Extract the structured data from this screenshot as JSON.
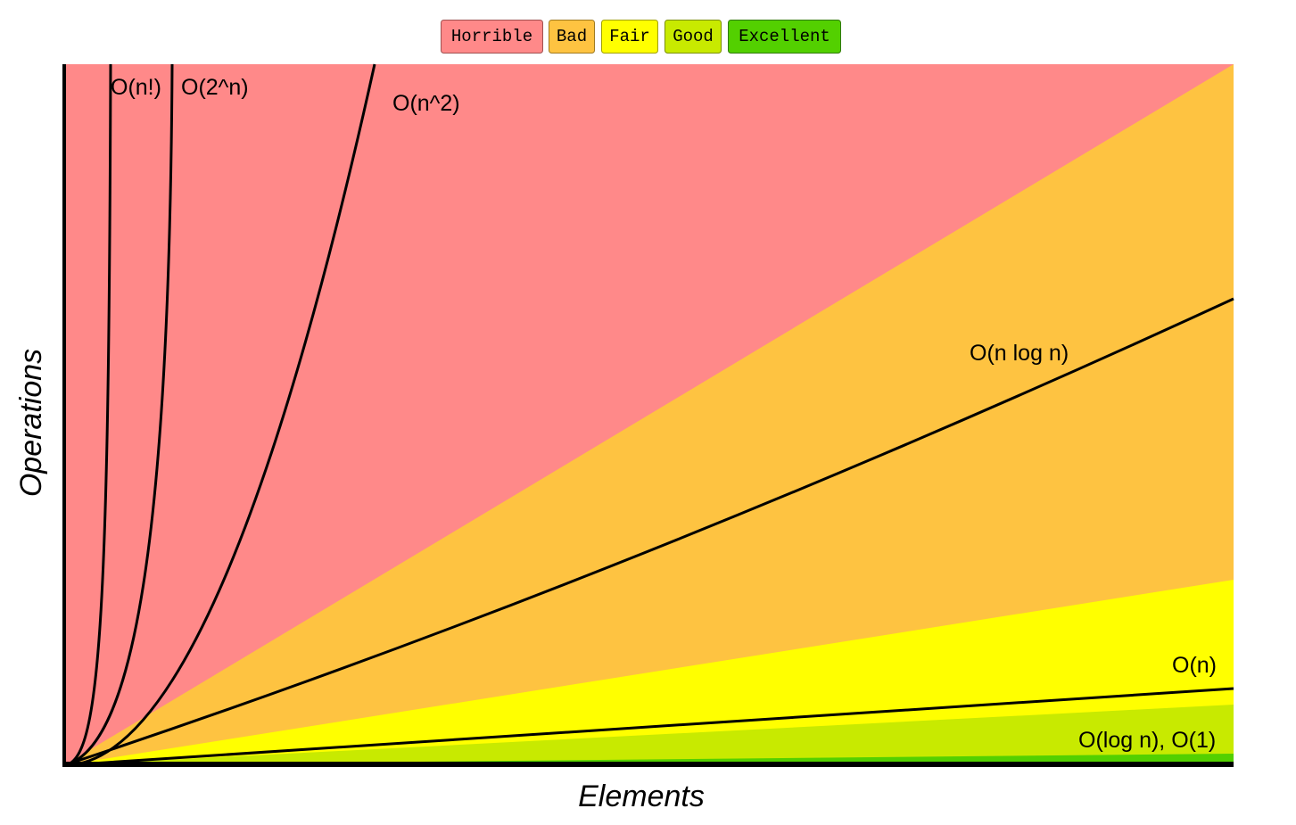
{
  "legend": [
    "Horrible",
    "Bad",
    "Fair",
    "Good",
    "Excellent"
  ],
  "curves": [
    "O(n!)",
    "O(2^n)",
    "O(n^2)",
    "O(n log n)",
    "O(n)",
    "O(log n), O(1)"
  ],
  "axes": {
    "x": "Elements",
    "y": "Operations"
  }
}
